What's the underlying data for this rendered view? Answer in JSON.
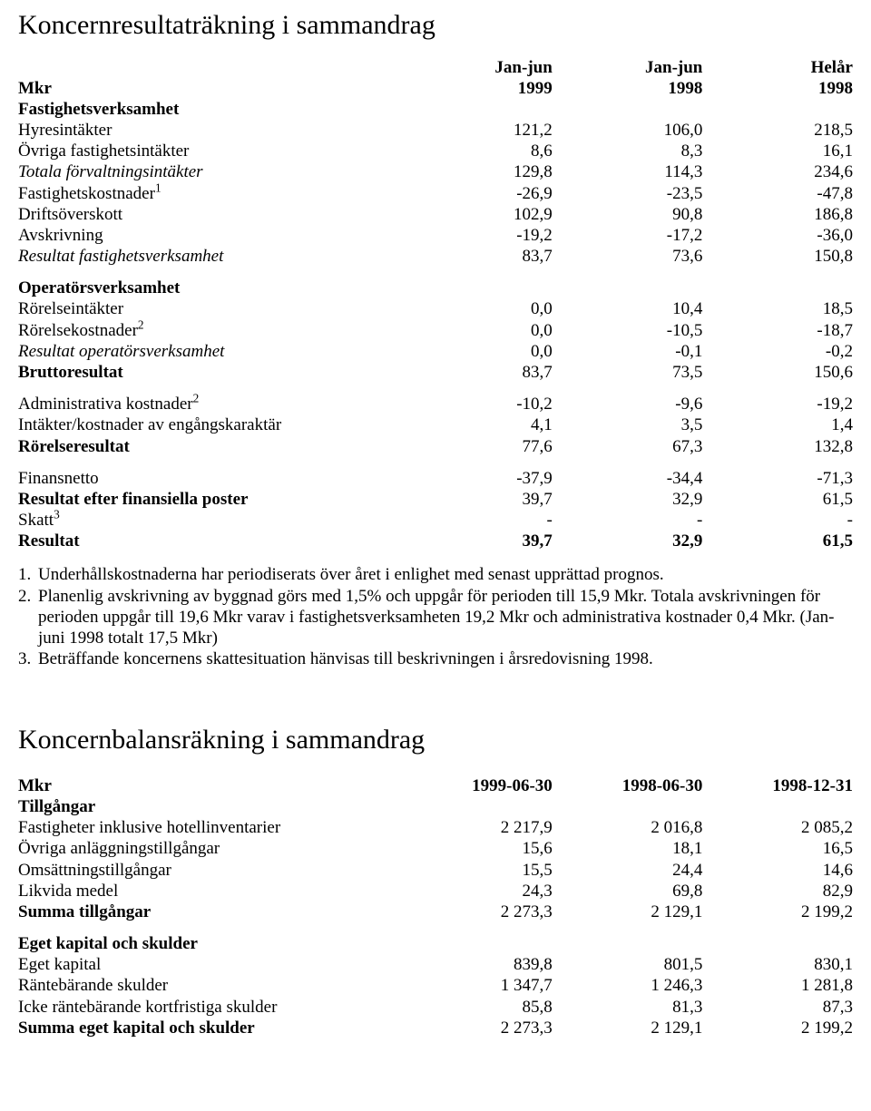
{
  "income": {
    "title": "Koncernresultaträkning i sammandrag",
    "col_headers": {
      "mkr": "Mkr",
      "c1a": "Jan-jun",
      "c1b": "1999",
      "c2a": "Jan-jun",
      "c2b": "1998",
      "c3a": "Helår",
      "c3b": "1998"
    },
    "sections": {
      "fastighet_header": "Fastighetsverksamhet",
      "hyresintakter": {
        "label": "Hyresintäkter",
        "v": [
          "121,2",
          "106,0",
          "218,5"
        ]
      },
      "ovriga_fastighet": {
        "label": "Övriga fastighetsintäkter",
        "v": [
          "8,6",
          "8,3",
          "16,1"
        ]
      },
      "totala_forvaltning": {
        "label": "Totala förvaltningsintäkter",
        "v": [
          "129,8",
          "114,3",
          "234,6"
        ]
      },
      "fastighetskostnader": {
        "label": "Fastighetskostnader",
        "sup": "1",
        "v": [
          "-26,9",
          "-23,5",
          "-47,8"
        ]
      },
      "driftsoverskott": {
        "label": "Driftsöverskott",
        "v": [
          "102,9",
          "90,8",
          "186,8"
        ]
      },
      "avskrivning": {
        "label": "Avskrivning",
        "v": [
          "-19,2",
          "-17,2",
          "-36,0"
        ]
      },
      "resultat_fastighet": {
        "label": "Resultat fastighetsverksamhet",
        "v": [
          "83,7",
          "73,6",
          "150,8"
        ]
      },
      "operator_header": "Operatörsverksamhet",
      "rorelseintakter": {
        "label": "Rörelseintäkter",
        "v": [
          "0,0",
          "10,4",
          "18,5"
        ]
      },
      "rorelsekostnader": {
        "label": "Rörelsekostnader",
        "sup": "2",
        "v": [
          "0,0",
          "-10,5",
          "-18,7"
        ]
      },
      "resultat_operator": {
        "label": "Resultat operatörsverksamhet",
        "v": [
          "0,0",
          "-0,1",
          "-0,2"
        ]
      },
      "bruttoresultat": {
        "label": "Bruttoresultat",
        "v": [
          "83,7",
          "73,5",
          "150,6"
        ]
      },
      "admin_kostnader": {
        "label": "Administrativa kostnader",
        "sup": "2",
        "v": [
          "-10,2",
          "-9,6",
          "-19,2"
        ]
      },
      "engangskaraktar": {
        "label": "Intäkter/kostnader av engångskaraktär",
        "v": [
          "4,1",
          "3,5",
          "1,4"
        ]
      },
      "rorelseresultat": {
        "label": "Rörelseresultat",
        "v": [
          "77,6",
          "67,3",
          "132,8"
        ]
      },
      "finansnetto": {
        "label": "Finansnetto",
        "v": [
          "-37,9",
          "-34,4",
          "-71,3"
        ]
      },
      "resultat_efter_fin": {
        "label": "Resultat efter finansiella poster",
        "v": [
          "39,7",
          "32,9",
          "61,5"
        ]
      },
      "skatt": {
        "label": "Skatt",
        "sup": "3",
        "v": [
          "-",
          "-",
          "-"
        ]
      },
      "resultat": {
        "label": "Resultat",
        "v": [
          "39,7",
          "32,9",
          "61,5"
        ]
      }
    },
    "notes": {
      "n1": {
        "num": "1.",
        "text": "Underhållskostnaderna har periodiserats över året i enlighet med senast upprättad prognos."
      },
      "n2": {
        "num": "2.",
        "text": "Planenlig avskrivning av byggnad görs med 1,5% och uppgår för perioden till 15,9 Mkr. Totala avskrivningen för perioden uppgår till 19,6 Mkr varav i fastighetsverksamheten 19,2 Mkr och administrativa kostnader 0,4 Mkr. (Jan-juni 1998 totalt 17,5 Mkr)"
      },
      "n3": {
        "num": "3.",
        "text": "Beträffande koncernens skattesituation hänvisas till beskrivningen i årsredovisning 1998."
      }
    }
  },
  "balance": {
    "title": "Koncernbalansräkning i sammandrag",
    "col_headers": {
      "mkr": "Mkr",
      "c1": "1999-06-30",
      "c2": "1998-06-30",
      "c3": "1998-12-31"
    },
    "sections": {
      "tillgangar_header": "Tillgångar",
      "fastigheter": {
        "label": "Fastigheter inklusive hotellinventarier",
        "v": [
          "2 217,9",
          "2 016,8",
          "2 085,2"
        ]
      },
      "ovriga_anlaggning": {
        "label": "Övriga anläggningstillgångar",
        "v": [
          "15,6",
          "18,1",
          "16,5"
        ]
      },
      "omsattning": {
        "label": "Omsättningstillgångar",
        "v": [
          "15,5",
          "24,4",
          "14,6"
        ]
      },
      "likvida": {
        "label": "Likvida medel",
        "v": [
          "24,3",
          "69,8",
          "82,9"
        ]
      },
      "summa_tillgangar": {
        "label": "Summa tillgångar",
        "v": [
          "2 273,3",
          "2 129,1",
          "2 199,2"
        ]
      },
      "egetkapital_header": "Eget kapital och skulder",
      "eget_kapital": {
        "label": "Eget kapital",
        "v": [
          "839,8",
          "801,5",
          "830,1"
        ]
      },
      "rantebarande": {
        "label": "Räntebärande skulder",
        "v": [
          "1 347,7",
          "1 246,3",
          "1 281,8"
        ]
      },
      "icke_rantebarande": {
        "label": "Icke räntebärande kortfristiga skulder",
        "v": [
          "85,8",
          "81,3",
          "87,3"
        ]
      },
      "summa_eget": {
        "label": "Summa eget kapital och skulder",
        "v": [
          "2 273,3",
          "2 129,1",
          "2 199,2"
        ]
      }
    }
  }
}
